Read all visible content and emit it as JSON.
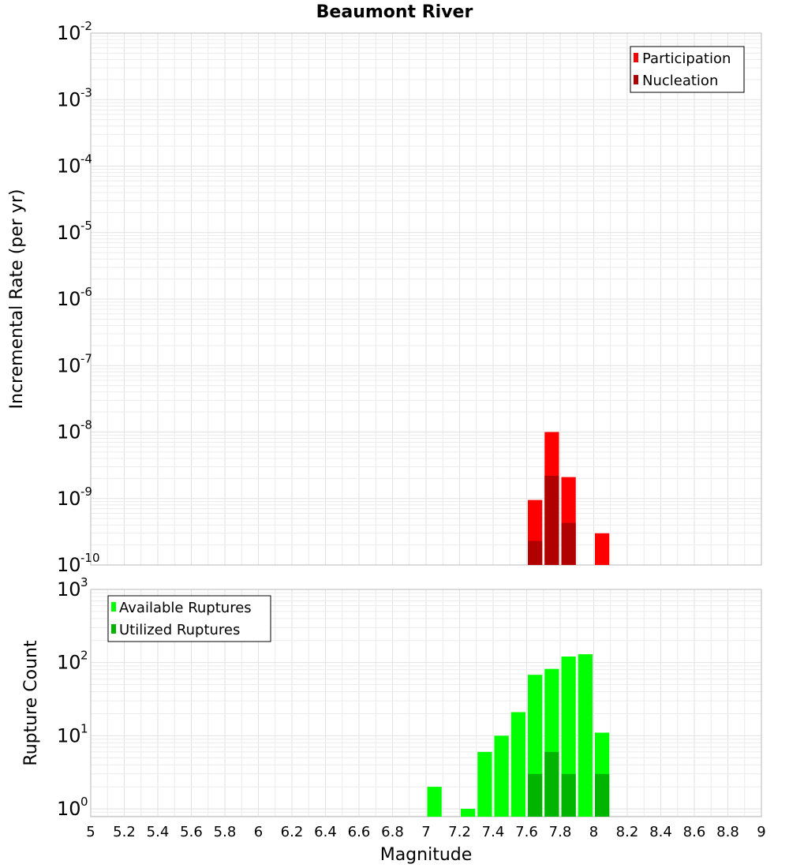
{
  "chart_data": [
    {
      "type": "bar",
      "title": "Beaumont River",
      "xlabel": "Magnitude",
      "ylabel": "Incremental Rate (per yr)",
      "yscale": "log",
      "ylim": [
        1e-10,
        0.01
      ],
      "xlim": [
        5,
        9
      ],
      "y_tick_exponents": [
        "-10",
        "-9",
        "-8",
        "-7",
        "-6",
        "-5",
        "-4",
        "-3",
        "-2"
      ],
      "bin_width": 0.1,
      "legend_position": "top-right",
      "series": [
        {
          "name": "Participation",
          "color": "#ff0000",
          "x": [
            7.65,
            7.75,
            7.85,
            8.05
          ],
          "values": [
            9.5e-10,
            1e-08,
            2.1e-09,
            3e-10
          ]
        },
        {
          "name": "Nucleation",
          "color": "#b00000",
          "x": [
            7.65,
            7.75,
            7.85
          ],
          "values": [
            2.3e-10,
            2.2e-09,
            4.3e-10
          ]
        }
      ]
    },
    {
      "type": "bar",
      "title": "",
      "xlabel": "Magnitude",
      "ylabel": "Rupture Count",
      "yscale": "log",
      "ylim": [
        0.78,
        1000
      ],
      "xlim": [
        5,
        9
      ],
      "y_tick_exponents": [
        "0",
        "1",
        "2",
        "3"
      ],
      "bin_width": 0.1,
      "legend_position": "top-left",
      "series": [
        {
          "name": "Available Ruptures",
          "color": "#00ff00",
          "x": [
            7.05,
            7.25,
            7.35,
            7.45,
            7.55,
            7.65,
            7.75,
            7.85,
            7.95,
            8.05
          ],
          "values": [
            2,
            1,
            6,
            10,
            21,
            68,
            82,
            121,
            130,
            11
          ]
        },
        {
          "name": "Utilized Ruptures",
          "color": "#00b400",
          "x": [
            7.65,
            7.75,
            7.85,
            8.05
          ],
          "values": [
            3,
            6,
            3,
            3
          ]
        }
      ]
    }
  ],
  "x_tick_labels": [
    "5",
    "5.2",
    "5.4",
    "5.6",
    "5.8",
    "6",
    "6.2",
    "6.4",
    "6.6",
    "6.8",
    "7",
    "7.2",
    "7.4",
    "7.6",
    "7.8",
    "8",
    "8.2",
    "8.4",
    "8.6",
    "8.8",
    "9"
  ],
  "x_tick_values": [
    5,
    5.2,
    5.4,
    5.6,
    5.8,
    6,
    6.2,
    6.4,
    6.6,
    6.8,
    7,
    7.2,
    7.4,
    7.6,
    7.8,
    8,
    8.2,
    8.4,
    8.6,
    8.8,
    9
  ],
  "power_base": "10"
}
